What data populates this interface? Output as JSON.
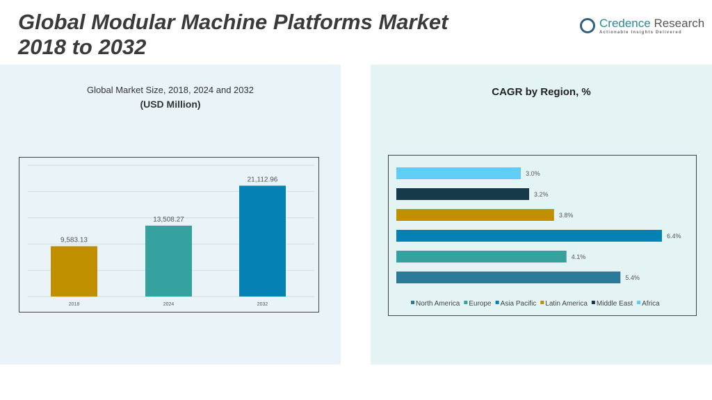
{
  "header": {
    "title_line1": "Global Modular Machine Platforms Market",
    "title_line2": "2018 to 2032",
    "logo_name": "Credence",
    "logo_name2": " Research",
    "logo_tagline": "Actionable Insights Delivered"
  },
  "chart_data": [
    {
      "type": "bar",
      "title": "Global Market Size, 2018, 2024 and 2032",
      "subtitle": "(USD Million)",
      "categories": [
        "2018",
        "2024",
        "2032"
      ],
      "values": [
        9583.13,
        13508.27,
        21112.96
      ],
      "value_labels": [
        "9,583.13",
        "13,508.27",
        "21,112.96"
      ],
      "colors": [
        "#c08f00",
        "#35a2a0",
        "#0681b3"
      ],
      "ylim": [
        0,
        25000
      ],
      "grid": true
    },
    {
      "type": "bar",
      "orientation": "horizontal",
      "title": "CAGR by Region, %",
      "series": [
        {
          "name": "North America",
          "value": 5.4,
          "label": "5.4%",
          "color": "#2c7a9a"
        },
        {
          "name": "Europe",
          "value": 4.1,
          "label": "4.1%",
          "color": "#35a2a0"
        },
        {
          "name": "Asia Pacific",
          "value": 6.4,
          "label": "6.4%",
          "color": "#0681b3"
        },
        {
          "name": "Latin America",
          "value": 3.8,
          "label": "3.8%",
          "color": "#c08f00"
        },
        {
          "name": "Middle East",
          "value": 3.2,
          "label": "3.2%",
          "color": "#173a4a"
        },
        {
          "name": "Africa",
          "value": 3.0,
          "label": "3.0%",
          "color": "#5fcdf5"
        }
      ],
      "legend": "bottom"
    }
  ]
}
